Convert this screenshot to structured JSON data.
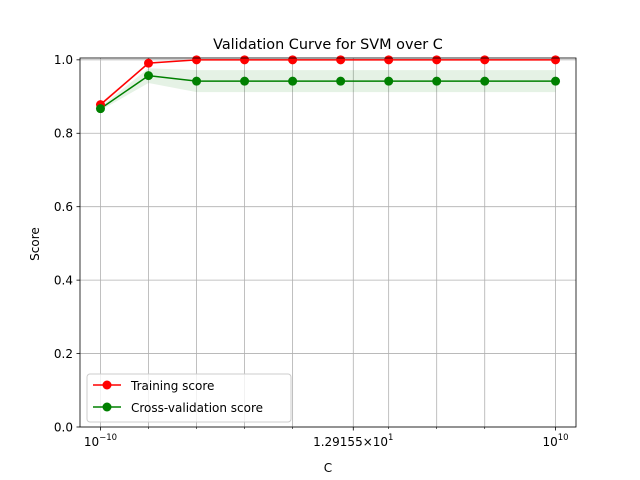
{
  "chart_data": {
    "type": "line",
    "title": "Validation Curve for SVM over C",
    "xlabel": "C",
    "ylabel": "Score",
    "xscale": "log",
    "x": [
      1e-10,
      1.29155e-08,
      1.6681e-06,
      0.000215443,
      0.0278256,
      3.59381,
      464.159,
      59948.4,
      7742640,
      10000000000.0
    ],
    "x_tick_labels": [
      {
        "x": 1e-10,
        "base": "10",
        "exp": "−10",
        "mantissa": ""
      },
      {
        "x": 12.9155,
        "base": "10",
        "exp": "1",
        "mantissa": "1.29155×"
      },
      {
        "x": 10000000000.0,
        "base": "10",
        "exp": "10",
        "mantissa": ""
      }
    ],
    "x_minor_ticks": [
      1.29155e-08,
      1.6681e-06,
      0.000215443,
      0.0278256,
      464.159,
      59948.4,
      7742640
    ],
    "ylim": [
      0,
      1.005
    ],
    "y_ticks": [
      0.0,
      0.2,
      0.4,
      0.6,
      0.8,
      1.0
    ],
    "y_tick_labels": [
      "0.0",
      "0.2",
      "0.4",
      "0.6",
      "0.8",
      "1.0"
    ],
    "grid": true,
    "legend_position": "lower-left",
    "series": [
      {
        "name": "Training score",
        "color": "#ff0000",
        "fill_color": "#ff0000",
        "values": [
          0.878,
          0.991,
          1.0,
          1.0,
          1.0,
          1.0,
          1.0,
          1.0,
          1.0,
          1.0
        ],
        "band_low": [
          0.873,
          0.988,
          1.0,
          1.0,
          1.0,
          1.0,
          1.0,
          1.0,
          1.0,
          1.0
        ],
        "band_high": [
          0.883,
          0.994,
          1.0,
          1.0,
          1.0,
          1.0,
          1.0,
          1.0,
          1.0,
          1.0
        ]
      },
      {
        "name": "Cross-validation score",
        "color": "#008000",
        "fill_color": "#008000",
        "values": [
          0.867,
          0.957,
          0.942,
          0.942,
          0.942,
          0.942,
          0.942,
          0.942,
          0.942,
          0.942
        ],
        "band_low": [
          0.862,
          0.937,
          0.912,
          0.912,
          0.912,
          0.912,
          0.912,
          0.912,
          0.912,
          0.912
        ],
        "band_high": [
          0.872,
          0.977,
          0.972,
          0.972,
          0.972,
          0.972,
          0.972,
          0.972,
          0.972,
          0.972
        ]
      }
    ]
  }
}
